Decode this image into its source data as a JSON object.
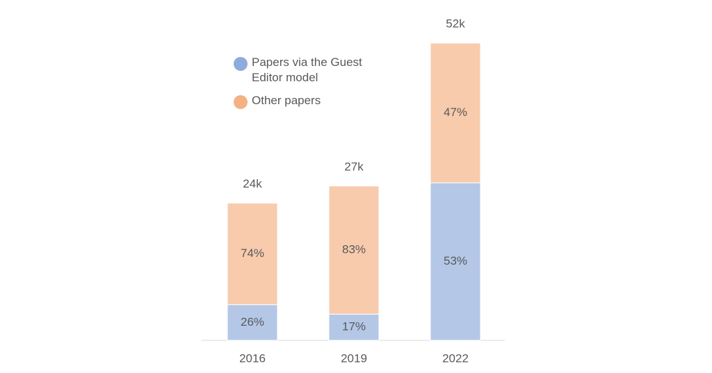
{
  "chart_data": {
    "type": "stacked-bar",
    "categories": [
      "2016",
      "2019",
      "2022"
    ],
    "totals": {
      "values": [
        24000,
        27000,
        52000
      ],
      "value_labels": [
        "24k",
        "27k",
        "52k"
      ]
    },
    "series": [
      {
        "name": "Papers via the Guest Editor model",
        "color": "#b4c7e7",
        "legend_color": "#8faadc",
        "values": [
          26,
          17,
          53
        ],
        "value_labels": [
          "26%",
          "17%",
          "53%"
        ]
      },
      {
        "name": "Other papers",
        "color": "#f8cbad",
        "legend_color": "#f4b183",
        "values": [
          74,
          83,
          47
        ],
        "value_labels": [
          "74%",
          "83%",
          "47%"
        ]
      }
    ]
  }
}
